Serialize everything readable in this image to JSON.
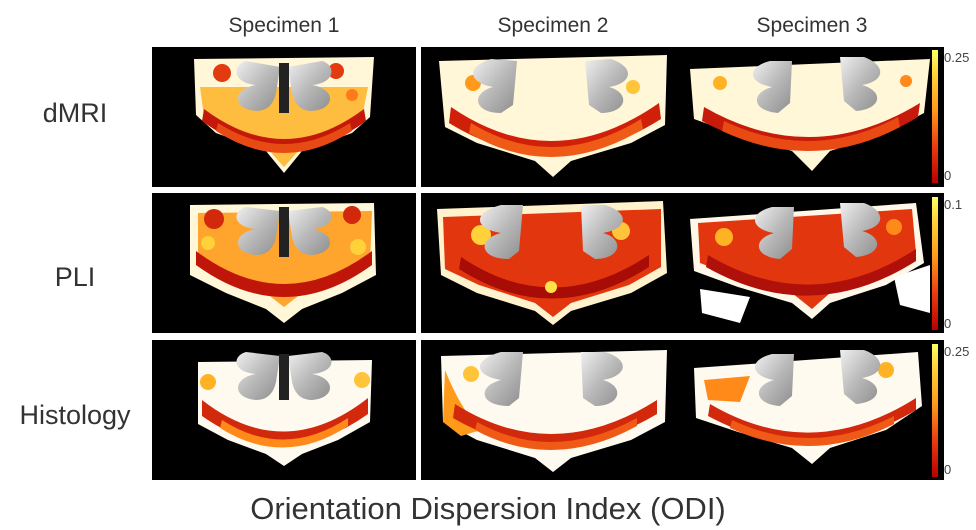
{
  "columns": [
    "Specimen 1",
    "Specimen 2",
    "Specimen 3"
  ],
  "rows": [
    "dMRI",
    "PLI",
    "Histology"
  ],
  "colorbars": [
    {
      "max": "0.25",
      "min": "0"
    },
    {
      "max": "0.1",
      "min": "0"
    },
    {
      "max": "0.25",
      "min": "0"
    }
  ],
  "footer": "Orientation Dispersion Index (ODI)"
}
